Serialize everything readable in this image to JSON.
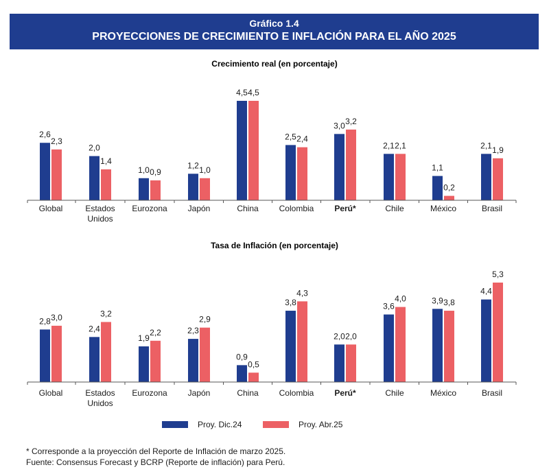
{
  "header": {
    "line1": "Gráfico 1.4",
    "line2": "PROYECCIONES DE CRECIMIENTO E INFLACIÓN PARA EL AÑO 2025"
  },
  "colors": {
    "dic24": "#1f3d8f",
    "abr25": "#ec6064"
  },
  "chart_data": [
    {
      "type": "bar",
      "title": "Crecimiento real (en porcentaje)",
      "categories": [
        "Global",
        "Estados\nUnidos",
        "Eurozona",
        "Japón",
        "China",
        "Colombia",
        "Perú*",
        "Chile",
        "México",
        "Brasil"
      ],
      "series": [
        {
          "name": "Proy. Dic.24",
          "values": [
            2.6,
            2.0,
            1.0,
            1.2,
            4.5,
            2.5,
            3.0,
            2.1,
            1.1,
            2.1
          ],
          "labels": [
            "2,6",
            "2,0",
            "1,0",
            "1,2",
            "4,5",
            "2,5",
            "3,0",
            "2,1",
            "1,1",
            "2,1"
          ]
        },
        {
          "name": "Proy. Abr.25",
          "values": [
            2.3,
            1.4,
            0.9,
            1.0,
            4.5,
            2.4,
            3.2,
            2.1,
            0.2,
            1.9
          ],
          "labels": [
            "2,3",
            "1,4",
            "0,9",
            "1,0",
            "4,5",
            "2,4",
            "3,2",
            "2,1",
            "0,2",
            "1,9"
          ]
        }
      ],
      "ylim": [
        0,
        4.5
      ],
      "bold_category": "Perú*"
    },
    {
      "type": "bar",
      "title": "Tasa de Inflación (en porcentaje)",
      "categories": [
        "Global",
        "Estados\nUnidos",
        "Eurozona",
        "Japón",
        "China",
        "Colombia",
        "Perú*",
        "Chile",
        "México",
        "Brasil"
      ],
      "series": [
        {
          "name": "Proy. Dic.24",
          "values": [
            2.8,
            2.4,
            1.9,
            2.3,
            0.9,
            3.8,
            2.0,
            3.6,
            3.9,
            4.4
          ],
          "labels": [
            "2,8",
            "2,4",
            "1,9",
            "2,3",
            "0,9",
            "3,8",
            "2,0",
            "3,6",
            "3,9",
            "4,4"
          ]
        },
        {
          "name": "Proy. Abr.25",
          "values": [
            3.0,
            3.2,
            2.2,
            2.9,
            0.5,
            4.3,
            2.0,
            4.0,
            3.8,
            5.3
          ],
          "labels": [
            "3,0",
            "3,2",
            "2,2",
            "2,9",
            "0,5",
            "4,3",
            "2,0",
            "4,0",
            "3,8",
            "5,3"
          ]
        }
      ],
      "ylim": [
        0,
        5.3
      ],
      "bold_category": "Perú*"
    }
  ],
  "legend": {
    "item1": "Proy. Dic.24",
    "item2": "Proy. Abr.25"
  },
  "footnotes": {
    "note": "* Corresponde a la proyección del Reporte de Inflación de marzo 2025.",
    "source": "Fuente: Consensus Forecast y BCRP (Reporte de inflación) para Perú."
  }
}
